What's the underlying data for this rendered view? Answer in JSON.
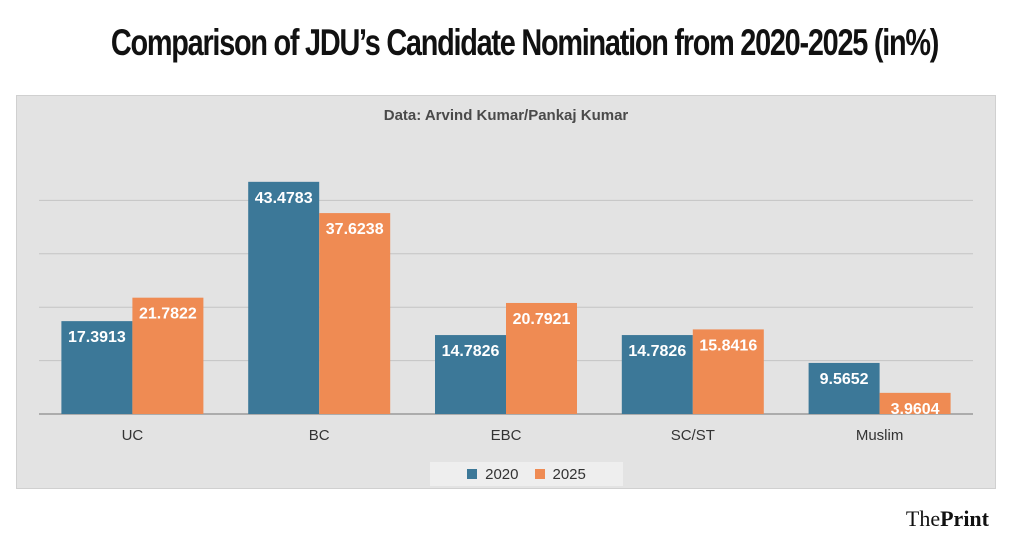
{
  "title": "Comparison of JDU’s Candidate Nomination from 2020-2025 (in%)",
  "brand": {
    "prefix": "The",
    "name": "Print"
  },
  "chart_data": {
    "type": "bar",
    "subtitle": "Data: Arvind Kumar/Pankaj Kumar",
    "categories": [
      "UC",
      "BC",
      "EBC",
      "SC/ST",
      "Muslim"
    ],
    "series": [
      {
        "name": "2020",
        "color": "#3c7898",
        "values": [
          17.3913,
          43.4783,
          14.7826,
          14.7826,
          9.5652
        ]
      },
      {
        "name": "2025",
        "color": "#ef8b53",
        "values": [
          21.7822,
          37.6238,
          20.7921,
          15.8416,
          3.9604
        ]
      }
    ],
    "value_labels": [
      [
        "17.3913",
        "43.4783",
        "14.7826",
        "14.7826",
        "9.5652"
      ],
      [
        "21.7822",
        "37.6238",
        "20.7921",
        "15.8416",
        "3.9604"
      ]
    ],
    "ylim": [
      0,
      50
    ],
    "gridlines": [
      0,
      10,
      20,
      30,
      40
    ],
    "grid": true,
    "y_tick_labels_shown": false,
    "legend": "bottom-center"
  }
}
